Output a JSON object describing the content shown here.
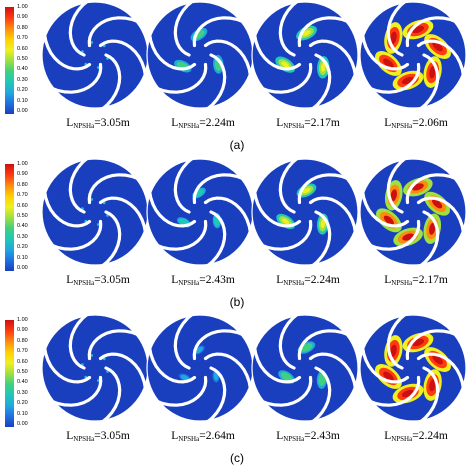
{
  "colors": {
    "impeller_body": "#1a3fbe",
    "background": "#ffffff"
  },
  "colorbar": {
    "ticks": [
      "1.00",
      "0.90",
      "0.80",
      "0.70",
      "0.60",
      "0.50",
      "0.40",
      "0.30",
      "0.20",
      "0.10",
      "0.00"
    ],
    "stops": [
      "#cc1010",
      "#ff3a10",
      "#ff8a10",
      "#ffd000",
      "#f0f020",
      "#a0e040",
      "#40d080",
      "#20c8b8",
      "#20a8e0",
      "#2070e0",
      "#1a3fbe"
    ]
  },
  "panels": [
    {
      "label": "(a)",
      "impellers": [
        {
          "prefix": "L",
          "sub": "NPSHa",
          "value": "=3.05m",
          "cavity_level": 0.05
        },
        {
          "prefix": "L",
          "sub": "NPSHa",
          "value": "=2.24m",
          "cavity_level": 0.45
        },
        {
          "prefix": "L",
          "sub": "NPSHa",
          "value": "=2.17m",
          "cavity_level": 0.6
        },
        {
          "prefix": "L",
          "sub": "NPSHa",
          "value": "=2.06m",
          "cavity_level": 1.0
        }
      ]
    },
    {
      "label": "(b)",
      "impellers": [
        {
          "prefix": "L",
          "sub": "NPSHa",
          "value": "=3.05m",
          "cavity_level": 0.05
        },
        {
          "prefix": "L",
          "sub": "NPSHa",
          "value": "=2.43m",
          "cavity_level": 0.3
        },
        {
          "prefix": "L",
          "sub": "NPSHa",
          "value": "=2.24m",
          "cavity_level": 0.55
        },
        {
          "prefix": "L",
          "sub": "NPSHa",
          "value": "=2.17m",
          "cavity_level": 0.95
        }
      ]
    },
    {
      "label": "(c)",
      "impellers": [
        {
          "prefix": "L",
          "sub": "NPSHa",
          "value": "=3.05m",
          "cavity_level": 0.05
        },
        {
          "prefix": "L",
          "sub": "NPSHa",
          "value": "=2.64m",
          "cavity_level": 0.2
        },
        {
          "prefix": "L",
          "sub": "NPSHa",
          "value": "=2.43m",
          "cavity_level": 0.45
        },
        {
          "prefix": "L",
          "sub": "NPSHa",
          "value": "=2.24m",
          "cavity_level": 1.0
        }
      ]
    }
  ]
}
